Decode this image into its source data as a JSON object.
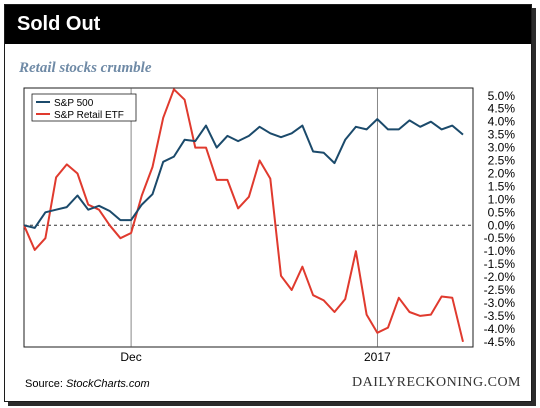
{
  "header": {
    "title": "Sold Out"
  },
  "subtitle": "Retail stocks crumble",
  "footer": {
    "source_label": "Source: ",
    "source_name": "StockCharts.com",
    "credit": "DAILYRECKONING.COM"
  },
  "colors": {
    "sp500": "#1b4a6b",
    "retail": "#e03a2e",
    "header_bg": "#000000",
    "subtitle": "#6f8aa6"
  },
  "chart_data": {
    "type": "line",
    "ylim": [
      -4.7,
      5.3
    ],
    "yticks": [
      5.0,
      4.5,
      4.0,
      3.5,
      3.0,
      2.5,
      2.0,
      1.5,
      1.0,
      0.5,
      0.0,
      -0.5,
      -1.0,
      -1.5,
      -2.0,
      -2.5,
      -3.0,
      -3.5,
      -4.0,
      -4.5
    ],
    "ytick_labels": [
      "5.0%",
      "4.5%",
      "4.0%",
      "3.5%",
      "3.0%",
      "2.5%",
      "2.0%",
      "1.5%",
      "1.0%",
      "0.5%",
      "0.0%",
      "-0.5%",
      "-1.0%",
      "-1.5%",
      "-2.0%",
      "-2.5%",
      "-3.0%",
      "-3.5%",
      "-4.0%",
      "-4.5%"
    ],
    "x_ticks": [
      {
        "index": 10,
        "label": "Dec"
      },
      {
        "index": 33,
        "label": "2017"
      }
    ],
    "legend": {
      "placement": "top-left"
    },
    "grid": "vertical lines at month ticks",
    "series": [
      {
        "name": "S&P 500",
        "values": [
          0.0,
          -0.1,
          0.5,
          0.6,
          0.7,
          1.15,
          0.6,
          0.75,
          0.55,
          0.2,
          0.2,
          0.8,
          1.2,
          2.45,
          2.65,
          3.3,
          3.25,
          3.85,
          3.0,
          3.45,
          3.25,
          3.45,
          3.8,
          3.55,
          3.4,
          3.55,
          3.85,
          2.85,
          2.8,
          2.4,
          3.3,
          3.8,
          3.7,
          4.1,
          3.7,
          3.7,
          4.05,
          3.8,
          4.0,
          3.7,
          3.85,
          3.5
        ]
      },
      {
        "name": "S&P Retail ETF",
        "values": [
          0.0,
          -0.95,
          -0.5,
          1.85,
          2.35,
          2.0,
          0.8,
          0.6,
          0.0,
          -0.5,
          -0.3,
          1.15,
          2.25,
          4.15,
          5.25,
          4.85,
          3.0,
          3.0,
          1.75,
          1.75,
          0.65,
          1.1,
          2.5,
          1.8,
          -1.95,
          -2.5,
          -1.6,
          -2.7,
          -2.9,
          -3.35,
          -2.85,
          -1.0,
          -3.45,
          -4.15,
          -3.95,
          -2.8,
          -3.35,
          -3.5,
          -3.45,
          -2.75,
          -2.8,
          -4.5
        ]
      }
    ]
  }
}
